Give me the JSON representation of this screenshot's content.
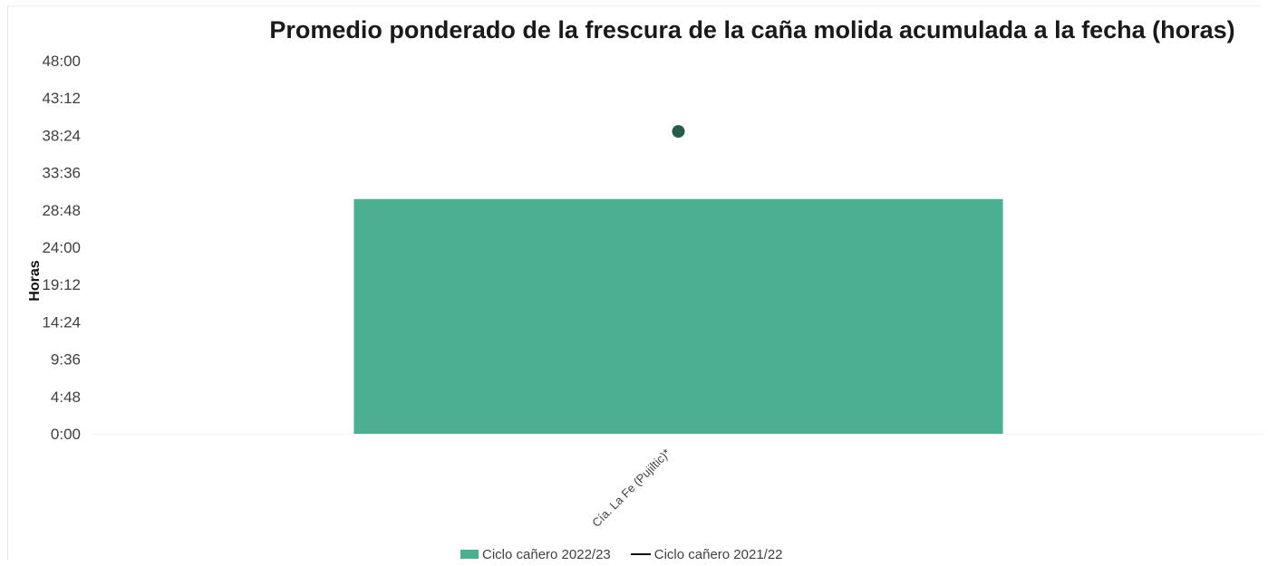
{
  "chart_data": {
    "type": "bar",
    "title": "Promedio ponderado de la frescura de la caña molida acumulada a la fecha (horas)",
    "ylabel": "Horas",
    "xlabel": "",
    "categories": [
      "Cía. La Fe (Pujiltic)*"
    ],
    "yticks": [
      "0:00",
      "4:48",
      "9:36",
      "14:24",
      "19:12",
      "24:00",
      "28:48",
      "33:36",
      "38:24",
      "43:12",
      "48:00"
    ],
    "ylim_hours": [
      0,
      48
    ],
    "series": [
      {
        "name": "Ciclo cañero 2022/23",
        "kind": "bar",
        "color": "#4daf91",
        "values_hours": [
          30.2
        ]
      },
      {
        "name": "Ciclo cañero 2021/22",
        "kind": "marker",
        "color": "#2a5c4a",
        "values_hours": [
          38.9
        ]
      }
    ],
    "legend_position": "bottom",
    "grid": false
  }
}
